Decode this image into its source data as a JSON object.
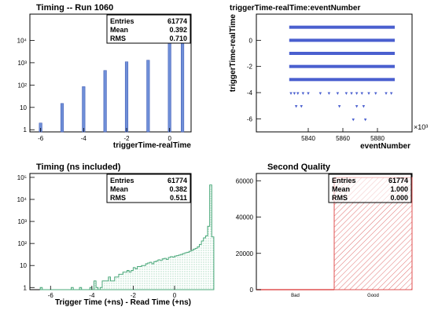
{
  "chart_data": [
    {
      "id": "p1",
      "type": "bar",
      "title": "Timing -- Run 1060",
      "xlabel": "triggerTime-realTime",
      "ylabel": "",
      "log_y": true,
      "xlim": [
        -6.5,
        1.0
      ],
      "ylim": [
        0.8,
        150000
      ],
      "x_ticks": [
        -6,
        -4,
        -2,
        0
      ],
      "y_ticks": [
        {
          "v": 1,
          "label": "1"
        },
        {
          "v": 10,
          "label": "10"
        },
        {
          "v": 100,
          "label": "10²"
        },
        {
          "v": 1000,
          "label": "10³"
        },
        {
          "v": 10000,
          "label": "10⁴"
        }
      ],
      "bar_color": "#6f8fd8",
      "bars": [
        {
          "x": -6,
          "value": 2
        },
        {
          "x": -5,
          "value": 15
        },
        {
          "x": -4,
          "value": 85
        },
        {
          "x": -3,
          "value": 450
        },
        {
          "x": -2,
          "value": 1100
        },
        {
          "x": -1,
          "value": 1300
        },
        {
          "x": 0,
          "value": 35000
        },
        {
          "x": 0.6,
          "value": 23500
        }
      ],
      "stats": [
        {
          "label": "Entries",
          "value": "61774"
        },
        {
          "label": "Mean",
          "value": "0.392"
        },
        {
          "label": "RMS",
          "value": "0.710"
        }
      ]
    },
    {
      "id": "p2",
      "type": "scatter",
      "title": "triggerTime-realTime:eventNumber",
      "xlabel": "eventNumber",
      "ylabel": "triggerTime-realTime",
      "x_exponent_label": "×10³",
      "xlim": [
        5810,
        5900
      ],
      "ylim": [
        -7,
        2
      ],
      "x_ticks": [
        5840,
        5860,
        5880
      ],
      "y_ticks": [
        -6,
        -4,
        -2,
        0
      ],
      "point_color": "#4a5fcf",
      "bands": [
        {
          "y": 1,
          "x_start": 5829,
          "x_end": 5890
        },
        {
          "y": 0,
          "x_start": 5829,
          "x_end": 5890
        },
        {
          "y": -1,
          "x_start": 5829,
          "x_end": 5890
        },
        {
          "y": -2,
          "x_start": 5829,
          "x_end": 5890
        },
        {
          "y": -3,
          "x_start": 5829,
          "x_end": 5890
        }
      ],
      "sparse_points": [
        {
          "x": 5830,
          "y": -4
        },
        {
          "x": 5832,
          "y": -4
        },
        {
          "x": 5834,
          "y": -4
        },
        {
          "x": 5837,
          "y": -4
        },
        {
          "x": 5840,
          "y": -4
        },
        {
          "x": 5847,
          "y": -4
        },
        {
          "x": 5852,
          "y": -4
        },
        {
          "x": 5857,
          "y": -4
        },
        {
          "x": 5862,
          "y": -4
        },
        {
          "x": 5865,
          "y": -4
        },
        {
          "x": 5868,
          "y": -4
        },
        {
          "x": 5871,
          "y": -4
        },
        {
          "x": 5875,
          "y": -4
        },
        {
          "x": 5879,
          "y": -4
        },
        {
          "x": 5885,
          "y": -4
        },
        {
          "x": 5888,
          "y": -4
        },
        {
          "x": 5833,
          "y": -5
        },
        {
          "x": 5836,
          "y": -5
        },
        {
          "x": 5858,
          "y": -5
        },
        {
          "x": 5868,
          "y": -5
        },
        {
          "x": 5872,
          "y": -5
        },
        {
          "x": 5866,
          "y": -6
        },
        {
          "x": 5873,
          "y": -6
        }
      ]
    },
    {
      "id": "p3",
      "type": "bar",
      "title": "Timing (ns included)",
      "xlabel": "Trigger Time (+ns) - Read Time (+ns)",
      "ylabel": "",
      "log_y": true,
      "histogram": true,
      "xlim": [
        -7,
        0.8
      ],
      "ylim": [
        0.8,
        150000
      ],
      "x_ticks": [
        -6,
        -4,
        -2,
        0
      ],
      "y_ticks": [
        {
          "v": 1,
          "label": "1"
        },
        {
          "v": 10,
          "label": "10"
        },
        {
          "v": 100,
          "label": "10²"
        },
        {
          "v": 1000,
          "label": "10³"
        },
        {
          "v": 10000,
          "label": "10⁴"
        },
        {
          "v": 100000,
          "label": "10⁵"
        }
      ],
      "line_color": "#4aa87a",
      "fill_color": "#d8efe2",
      "bin_width": 0.1,
      "x_start": -6.5,
      "values": [
        1,
        0,
        0,
        0,
        0,
        0,
        0,
        0,
        0,
        0,
        0,
        0,
        0,
        0,
        0,
        1,
        0,
        0,
        0,
        1,
        0,
        0,
        0,
        0,
        1,
        0,
        2,
        1,
        0,
        1,
        2,
        2,
        2,
        3,
        2,
        2,
        3,
        3,
        4,
        4,
        5,
        5,
        6,
        5,
        6,
        8,
        7,
        9,
        9,
        10,
        10,
        12,
        13,
        14,
        12,
        15,
        16,
        18,
        17,
        20,
        21,
        19,
        23,
        25,
        24,
        27,
        28,
        30,
        32,
        35,
        38,
        40,
        44,
        48,
        55,
        60,
        70,
        90,
        130,
        180,
        220,
        600,
        45000,
        200
      ],
      "stats": [
        {
          "label": "Entries",
          "value": "61774"
        },
        {
          "label": "Mean",
          "value": "0.382"
        },
        {
          "label": "RMS",
          "value": "0.511"
        }
      ]
    },
    {
      "id": "p4",
      "type": "bar",
      "title": "Second Quality",
      "xlabel": "",
      "ylabel": "",
      "categories": [
        "Bad",
        "Good"
      ],
      "values": [
        0,
        61774
      ],
      "ylim": [
        0,
        64000
      ],
      "y_ticks": [
        0,
        20000,
        40000,
        60000
      ],
      "line_color": "#e05050",
      "stats": [
        {
          "label": "Entries",
          "value": "61774"
        },
        {
          "label": "Mean",
          "value": "1.000"
        },
        {
          "label": "RMS",
          "value": "0.000"
        }
      ]
    }
  ]
}
